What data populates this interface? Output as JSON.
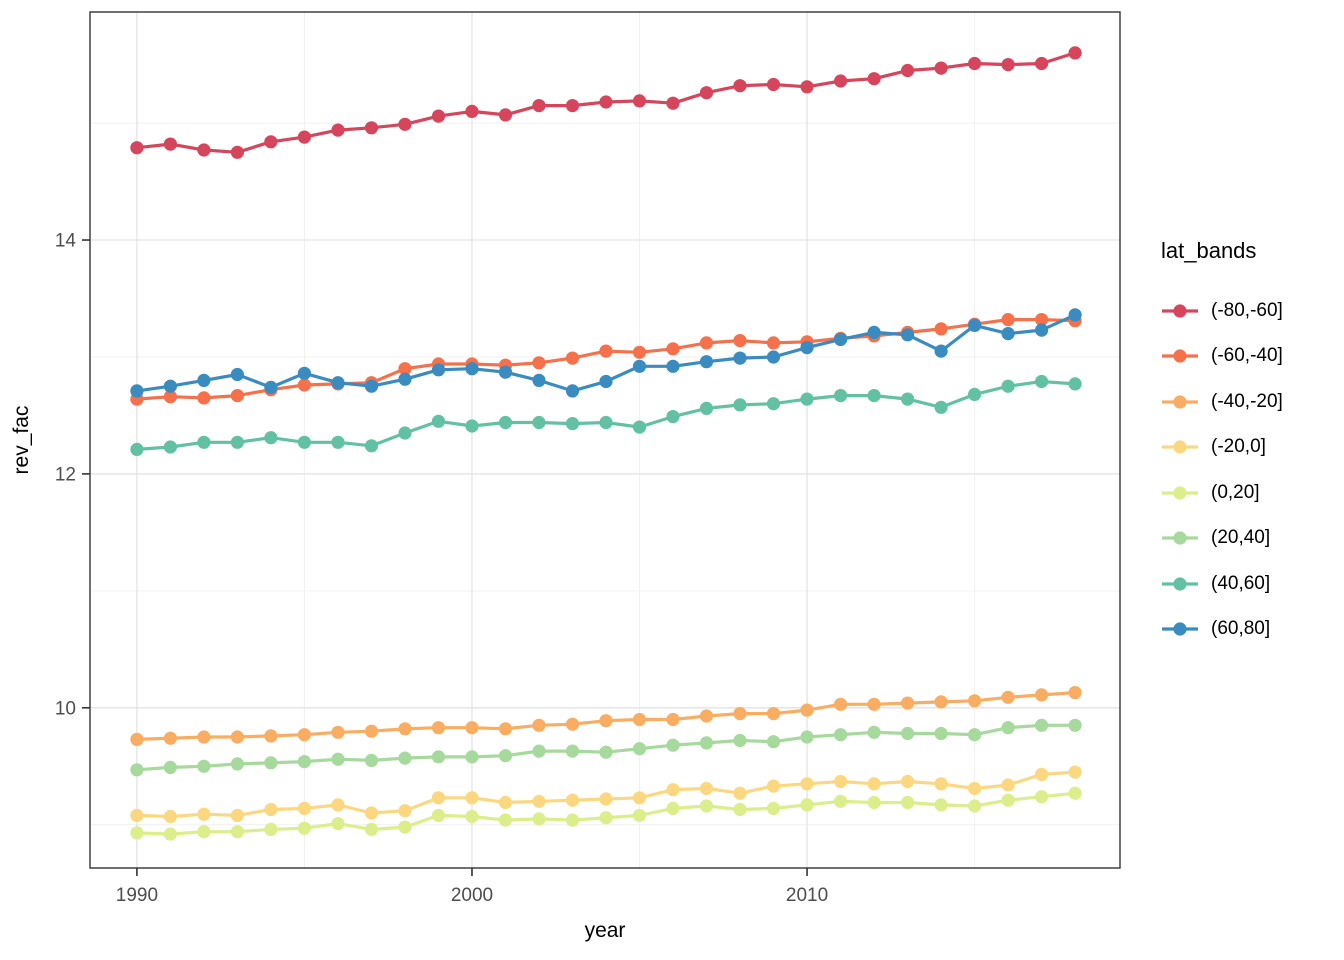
{
  "chart_data": {
    "type": "line",
    "title": "",
    "xlabel": "year",
    "ylabel": "rev_fac",
    "legend_title": "lat_bands",
    "legend_position": "right",
    "grid": true,
    "marker": "point",
    "xlim": [
      1988.6,
      2019.34
    ],
    "ylim": [
      8.63,
      15.95
    ],
    "x_major_ticks": [
      1990,
      2000,
      2010
    ],
    "x_minor_gridlines": [
      1995,
      2005,
      2015
    ],
    "y_major_ticks": [
      10,
      12,
      14
    ],
    "y_minor_gridlines": [
      9,
      11,
      13,
      15
    ],
    "x": [
      1990,
      1991,
      1992,
      1993,
      1994,
      1995,
      1996,
      1997,
      1998,
      1999,
      2000,
      2001,
      2002,
      2003,
      2004,
      2005,
      2006,
      2007,
      2008,
      2009,
      2010,
      2011,
      2012,
      2013,
      2014,
      2015,
      2016,
      2017,
      2018
    ],
    "series": [
      {
        "name": "(-80,-60]",
        "color": "#d5465c",
        "values": [
          14.79,
          14.82,
          14.77,
          14.75,
          14.84,
          14.88,
          14.94,
          14.96,
          14.99,
          15.06,
          15.1,
          15.07,
          15.15,
          15.15,
          15.18,
          15.19,
          15.17,
          15.26,
          15.32,
          15.33,
          15.31,
          15.36,
          15.38,
          15.45,
          15.47,
          15.51,
          15.5,
          15.51,
          15.6
        ]
      },
      {
        "name": "(-60,-40]",
        "color": "#f4714b",
        "values": [
          12.64,
          12.66,
          12.65,
          12.67,
          12.72,
          12.76,
          12.77,
          12.78,
          12.9,
          12.94,
          12.94,
          12.93,
          12.95,
          12.99,
          13.05,
          13.04,
          13.07,
          13.12,
          13.14,
          13.12,
          13.13,
          13.16,
          13.18,
          13.21,
          13.24,
          13.28,
          13.32,
          13.32,
          13.31
        ]
      },
      {
        "name": "(-40,-20]",
        "color": "#f9ad63",
        "values": [
          9.73,
          9.74,
          9.75,
          9.75,
          9.76,
          9.77,
          9.79,
          9.8,
          9.82,
          9.83,
          9.83,
          9.82,
          9.85,
          9.86,
          9.89,
          9.9,
          9.9,
          9.93,
          9.95,
          9.95,
          9.98,
          10.03,
          10.03,
          10.04,
          10.05,
          10.06,
          10.09,
          10.11,
          10.13
        ]
      },
      {
        "name": "(-20,0]",
        "color": "#fbd880",
        "values": [
          9.08,
          9.07,
          9.09,
          9.08,
          9.13,
          9.14,
          9.17,
          9.1,
          9.12,
          9.23,
          9.23,
          9.19,
          9.2,
          9.21,
          9.22,
          9.23,
          9.3,
          9.31,
          9.27,
          9.33,
          9.35,
          9.37,
          9.35,
          9.37,
          9.35,
          9.31,
          9.34,
          9.43,
          9.45
        ]
      },
      {
        "name": "(0,20]",
        "color": "#dcee8b",
        "values": [
          8.93,
          8.92,
          8.94,
          8.94,
          8.96,
          8.97,
          9.01,
          8.96,
          8.98,
          9.08,
          9.07,
          9.04,
          9.05,
          9.04,
          9.06,
          9.08,
          9.14,
          9.16,
          9.13,
          9.14,
          9.17,
          9.2,
          9.19,
          9.19,
          9.17,
          9.16,
          9.21,
          9.24,
          9.27
        ]
      },
      {
        "name": "(20,40]",
        "color": "#a6d99c",
        "values": [
          9.47,
          9.49,
          9.5,
          9.52,
          9.53,
          9.54,
          9.56,
          9.55,
          9.57,
          9.58,
          9.58,
          9.59,
          9.63,
          9.63,
          9.62,
          9.65,
          9.68,
          9.7,
          9.72,
          9.71,
          9.75,
          9.77,
          9.79,
          9.78,
          9.78,
          9.77,
          9.83,
          9.85,
          9.85
        ]
      },
      {
        "name": "(40,60]",
        "color": "#63c1a3",
        "values": [
          12.21,
          12.23,
          12.27,
          12.27,
          12.31,
          12.27,
          12.27,
          12.24,
          12.35,
          12.45,
          12.41,
          12.44,
          12.44,
          12.43,
          12.44,
          12.4,
          12.49,
          12.56,
          12.59,
          12.6,
          12.64,
          12.67,
          12.67,
          12.64,
          12.57,
          12.68,
          12.75,
          12.79,
          12.77
        ]
      },
      {
        "name": "(60,80]",
        "color": "#3a8bbf",
        "values": [
          12.71,
          12.75,
          12.8,
          12.85,
          12.74,
          12.86,
          12.78,
          12.75,
          12.81,
          12.89,
          12.9,
          12.87,
          12.8,
          12.71,
          12.79,
          12.92,
          12.92,
          12.96,
          12.99,
          13.0,
          13.08,
          13.15,
          13.21,
          13.19,
          13.05,
          13.27,
          13.2,
          13.23,
          13.36
        ]
      }
    ]
  },
  "style_colors": {
    "panel_background": "#ffffff",
    "panel_border": "#333333",
    "grid_major": "#e3e3e3",
    "grid_minor": "#f0f0f0",
    "tick_mark": "#333333",
    "tick_text": "#4d4d4d",
    "axis_title_text": "#000000"
  }
}
